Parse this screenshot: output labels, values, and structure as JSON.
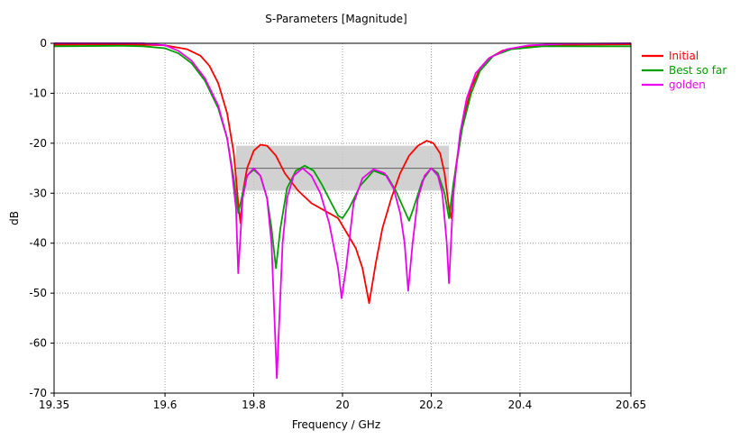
{
  "chart_data": {
    "type": "line",
    "title": "S-Parameters [Magnitude]",
    "xlabel": "Frequency / GHz",
    "ylabel": "dB",
    "xlim": [
      19.35,
      20.65
    ],
    "ylim": [
      -70,
      0
    ],
    "x_ticks": [
      19.35,
      19.6,
      19.8,
      20,
      20.2,
      20.4,
      20.65
    ],
    "x_tick_labels": [
      "19.35",
      "19.6",
      "19.8",
      "20",
      "20.2",
      "20.4",
      "20.65"
    ],
    "y_ticks": [
      0,
      -10,
      -20,
      -30,
      -40,
      -50,
      -60,
      -70
    ],
    "y_tick_labels": [
      "0",
      "-10",
      "-20",
      "-30",
      "-40",
      "-50",
      "-60",
      "-70"
    ],
    "grid": true,
    "legend_position": "right",
    "goal_region": {
      "x": [
        19.76,
        20.24
      ],
      "y_top": -20.5,
      "y_bottom": -29.5,
      "target": -25,
      "fill_color": "#c9c9c9",
      "line_color": "#6e6e6e"
    },
    "series": [
      {
        "name": "Initial",
        "color": "#ff0000",
        "points": [
          [
            19.35,
            -0.3
          ],
          [
            19.5,
            -0.2
          ],
          [
            19.6,
            -0.4
          ],
          [
            19.65,
            -1.2
          ],
          [
            19.68,
            -2.5
          ],
          [
            19.7,
            -4.5
          ],
          [
            19.72,
            -8
          ],
          [
            19.74,
            -14
          ],
          [
            19.755,
            -22
          ],
          [
            19.765,
            -32
          ],
          [
            19.77,
            -36
          ],
          [
            19.775,
            -30
          ],
          [
            19.785,
            -25
          ],
          [
            19.8,
            -21.5
          ],
          [
            19.815,
            -20.3
          ],
          [
            19.83,
            -20.5
          ],
          [
            19.85,
            -22.5
          ],
          [
            19.87,
            -26
          ],
          [
            19.9,
            -29.5
          ],
          [
            19.93,
            -32
          ],
          [
            19.96,
            -33.5
          ],
          [
            19.99,
            -35
          ],
          [
            20.01,
            -38
          ],
          [
            20.03,
            -41
          ],
          [
            20.045,
            -45
          ],
          [
            20.06,
            -52
          ],
          [
            20.075,
            -44
          ],
          [
            20.09,
            -37
          ],
          [
            20.11,
            -31
          ],
          [
            20.13,
            -26
          ],
          [
            20.15,
            -22.5
          ],
          [
            20.17,
            -20.5
          ],
          [
            20.19,
            -19.5
          ],
          [
            20.205,
            -20
          ],
          [
            20.22,
            -22
          ],
          [
            20.23,
            -26
          ],
          [
            20.24,
            -33
          ],
          [
            20.245,
            -35
          ],
          [
            20.255,
            -25
          ],
          [
            20.27,
            -16
          ],
          [
            20.29,
            -9
          ],
          [
            20.31,
            -5
          ],
          [
            20.33,
            -3
          ],
          [
            20.36,
            -1.5
          ],
          [
            20.4,
            -0.8
          ],
          [
            20.5,
            -0.3
          ],
          [
            20.65,
            -0.2
          ]
        ]
      },
      {
        "name": "Best so far",
        "color": "#00a000",
        "points": [
          [
            19.35,
            -0.6
          ],
          [
            19.5,
            -0.5
          ],
          [
            19.55,
            -0.6
          ],
          [
            19.6,
            -1
          ],
          [
            19.63,
            -2
          ],
          [
            19.66,
            -4
          ],
          [
            19.69,
            -7.5
          ],
          [
            19.72,
            -13
          ],
          [
            19.74,
            -19
          ],
          [
            19.755,
            -27
          ],
          [
            19.765,
            -34
          ],
          [
            19.775,
            -30
          ],
          [
            19.785,
            -26.5
          ],
          [
            19.8,
            -25.3
          ],
          [
            19.815,
            -26.5
          ],
          [
            19.83,
            -31
          ],
          [
            19.84,
            -37
          ],
          [
            19.85,
            -45
          ],
          [
            19.86,
            -37
          ],
          [
            19.875,
            -29
          ],
          [
            19.895,
            -25.5
          ],
          [
            19.915,
            -24.5
          ],
          [
            19.935,
            -25.5
          ],
          [
            19.955,
            -28.5
          ],
          [
            19.975,
            -32
          ],
          [
            19.99,
            -34.5
          ],
          [
            20,
            -35
          ],
          [
            20.015,
            -33
          ],
          [
            20.04,
            -28.5
          ],
          [
            20.07,
            -25.5
          ],
          [
            20.1,
            -26.5
          ],
          [
            20.12,
            -29.5
          ],
          [
            20.14,
            -33.5
          ],
          [
            20.15,
            -35.5
          ],
          [
            20.16,
            -33
          ],
          [
            20.18,
            -27.5
          ],
          [
            20.2,
            -25
          ],
          [
            20.215,
            -26
          ],
          [
            20.23,
            -30
          ],
          [
            20.24,
            -35
          ],
          [
            20.25,
            -28
          ],
          [
            20.27,
            -17
          ],
          [
            20.29,
            -10
          ],
          [
            20.31,
            -5.5
          ],
          [
            20.34,
            -2.5
          ],
          [
            20.38,
            -1.2
          ],
          [
            20.45,
            -0.6
          ],
          [
            20.65,
            -0.6
          ]
        ]
      },
      {
        "name": "golden",
        "color": "#ee00ee",
        "points": [
          [
            19.35,
            0
          ],
          [
            19.55,
            0
          ],
          [
            19.6,
            -0.4
          ],
          [
            19.63,
            -1.5
          ],
          [
            19.66,
            -3.5
          ],
          [
            19.69,
            -7
          ],
          [
            19.72,
            -12.5
          ],
          [
            19.74,
            -19
          ],
          [
            19.75,
            -25
          ],
          [
            19.76,
            -33
          ],
          [
            19.765,
            -46
          ],
          [
            19.775,
            -31
          ],
          [
            19.785,
            -26.5
          ],
          [
            19.8,
            -25
          ],
          [
            19.815,
            -26.5
          ],
          [
            19.83,
            -31
          ],
          [
            19.84,
            -40
          ],
          [
            19.852,
            -67
          ],
          [
            19.865,
            -40
          ],
          [
            19.875,
            -31
          ],
          [
            19.89,
            -26.5
          ],
          [
            19.91,
            -25
          ],
          [
            19.93,
            -26.5
          ],
          [
            19.95,
            -30
          ],
          [
            19.97,
            -36
          ],
          [
            19.99,
            -45
          ],
          [
            19.998,
            -51
          ],
          [
            20.008,
            -45
          ],
          [
            20.025,
            -32
          ],
          [
            20.045,
            -27
          ],
          [
            20.07,
            -25.2
          ],
          [
            20.095,
            -26
          ],
          [
            20.115,
            -29
          ],
          [
            20.13,
            -34
          ],
          [
            20.14,
            -40
          ],
          [
            20.148,
            -49.5
          ],
          [
            20.158,
            -40
          ],
          [
            20.17,
            -31
          ],
          [
            20.185,
            -26.5
          ],
          [
            20.2,
            -25
          ],
          [
            20.215,
            -26.5
          ],
          [
            20.225,
            -30
          ],
          [
            20.235,
            -40
          ],
          [
            20.24,
            -48
          ],
          [
            20.25,
            -30
          ],
          [
            20.265,
            -18
          ],
          [
            20.28,
            -11
          ],
          [
            20.3,
            -6
          ],
          [
            20.33,
            -3
          ],
          [
            20.37,
            -1.2
          ],
          [
            20.42,
            -0.4
          ],
          [
            20.5,
            -0.1
          ],
          [
            20.65,
            0
          ]
        ]
      }
    ]
  }
}
